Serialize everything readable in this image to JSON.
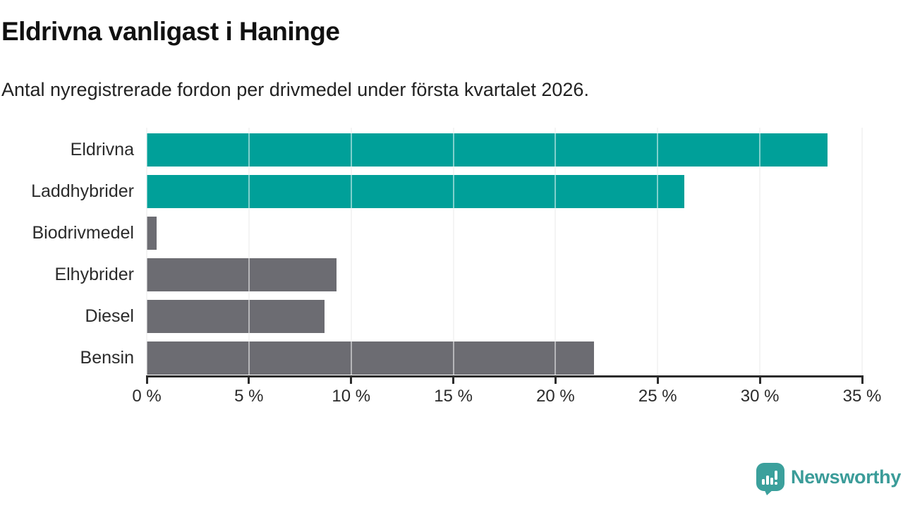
{
  "header": {
    "title": "Eldrivna vanligast i Haninge",
    "subtitle": "Antal nyregistrerade fordon per drivmedel under första kvartalet 2026."
  },
  "chart_data": {
    "type": "bar",
    "orientation": "horizontal",
    "categories": [
      "Eldrivna",
      "Laddhybrider",
      "Biodrivmedel",
      "Elhybrider",
      "Diesel",
      "Bensin"
    ],
    "values": [
      33.3,
      26.3,
      0.5,
      9.3,
      8.7,
      21.9
    ],
    "unit": "%",
    "bar_colors": [
      "#00A099",
      "#00A099",
      "#6C6C72",
      "#6C6C72",
      "#6C6C72",
      "#6C6C72"
    ],
    "xlim": [
      0,
      35
    ],
    "x_tick_values": [
      0,
      5,
      10,
      15,
      20,
      25,
      30,
      35
    ],
    "x_tick_labels": [
      "0 %",
      "5 %",
      "10 %",
      "15 %",
      "20 %",
      "25 %",
      "30 %",
      "35 %"
    ],
    "grid": "vertical",
    "legend": "none",
    "title": "Eldrivna vanligast i Haninge",
    "xlabel": "",
    "ylabel": ""
  },
  "colors": {
    "accent_teal": "#00A099",
    "neutral_gray": "#6C6C72",
    "axis": "#2B2B2B",
    "gridline": "#E9E9E9",
    "brand_teal": "#3B9C99"
  },
  "footer": {
    "brand": "Newsworthy",
    "brand_icon": "newsworthy-speech-bubble-bar-chart-icon"
  }
}
